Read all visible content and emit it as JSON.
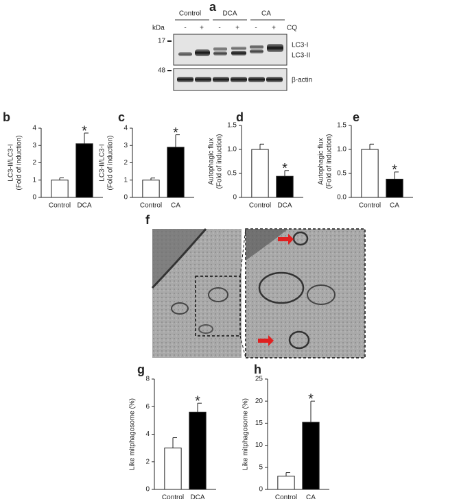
{
  "blot": {
    "label": "a",
    "groups": [
      "Control",
      "DCA",
      "CA"
    ],
    "kda": "kDa",
    "treatments": [
      "-",
      "+",
      "-",
      "+",
      "-",
      "+"
    ],
    "treatment_name": "CQ",
    "markers": [
      17,
      48
    ],
    "bands": [
      "LC3-I",
      "LC3-II",
      "β-actin"
    ]
  },
  "image_panel": {
    "label": "f"
  },
  "chart_data": [
    {
      "type": "bar",
      "label": "b",
      "ylabel": [
        "LC3-II/LC3-I",
        "(Fold of induction)"
      ],
      "categories": [
        "Control",
        "DCA"
      ],
      "values": [
        1.0,
        3.1
      ],
      "errors": [
        0.13,
        0.62
      ],
      "colors": [
        "#ffffff",
        "#000000"
      ],
      "ylim": [
        0,
        4
      ],
      "yticks": [
        0,
        1,
        2,
        3,
        4
      ],
      "annotation": "*"
    },
    {
      "type": "bar",
      "label": "c",
      "ylabel": [
        "LC3-II/LC3-I",
        "(Fold of induction)"
      ],
      "categories": [
        "Control",
        "CA"
      ],
      "values": [
        1.0,
        2.9
      ],
      "errors": [
        0.12,
        0.72
      ],
      "colors": [
        "#ffffff",
        "#000000"
      ],
      "ylim": [
        0,
        4
      ],
      "yticks": [
        0,
        1,
        2,
        3,
        4
      ],
      "annotation": "*"
    },
    {
      "type": "bar",
      "label": "d",
      "ylabel": [
        "Autophagic flux",
        "(Fold of induction)"
      ],
      "categories": [
        "Control",
        "DCA"
      ],
      "values": [
        1.0,
        0.44
      ],
      "errors": [
        0.11,
        0.12
      ],
      "colors": [
        "#ffffff",
        "#000000"
      ],
      "ylim": [
        0,
        1.5
      ],
      "yticks": [
        0,
        0.5,
        {
          "value": 1,
          "label": "1.0"
        },
        1.5
      ],
      "annotation": "*"
    },
    {
      "type": "bar",
      "label": "e",
      "ylabel": [
        "Autophagic flux",
        "(Fold of induction)"
      ],
      "categories": [
        "Control",
        "CA"
      ],
      "values": [
        1.0,
        0.38
      ],
      "errors": [
        0.11,
        0.15
      ],
      "colors": [
        "#ffffff",
        "#000000"
      ],
      "ylim": [
        0,
        1.5
      ],
      "yticks": [
        {
          "value": 0,
          "label": "0.0"
        },
        0.5,
        {
          "value": 1,
          "label": "1.0"
        },
        1.5
      ],
      "annotation": "*"
    },
    {
      "type": "bar",
      "label": "g",
      "ylabel": [
        "Like mitphagosome (%)"
      ],
      "categories": [
        "Control",
        "DCA"
      ],
      "values": [
        3.0,
        5.6
      ],
      "errors": [
        0.75,
        0.65
      ],
      "colors": [
        "#ffffff",
        "#000000"
      ],
      "ylim": [
        0,
        8
      ],
      "yticks": [
        0,
        2,
        4,
        6,
        8
      ],
      "annotation": "*"
    },
    {
      "type": "bar",
      "label": "h",
      "ylabel": [
        "Like mitphagosome (%)"
      ],
      "categories": [
        "Control",
        "CA"
      ],
      "values": [
        3.0,
        15.2
      ],
      "errors": [
        0.8,
        4.8
      ],
      "colors": [
        "#ffffff",
        "#000000"
      ],
      "ylim": [
        0,
        25
      ],
      "yticks": [
        0,
        5,
        10,
        15,
        20,
        25
      ],
      "annotation": "*"
    }
  ]
}
